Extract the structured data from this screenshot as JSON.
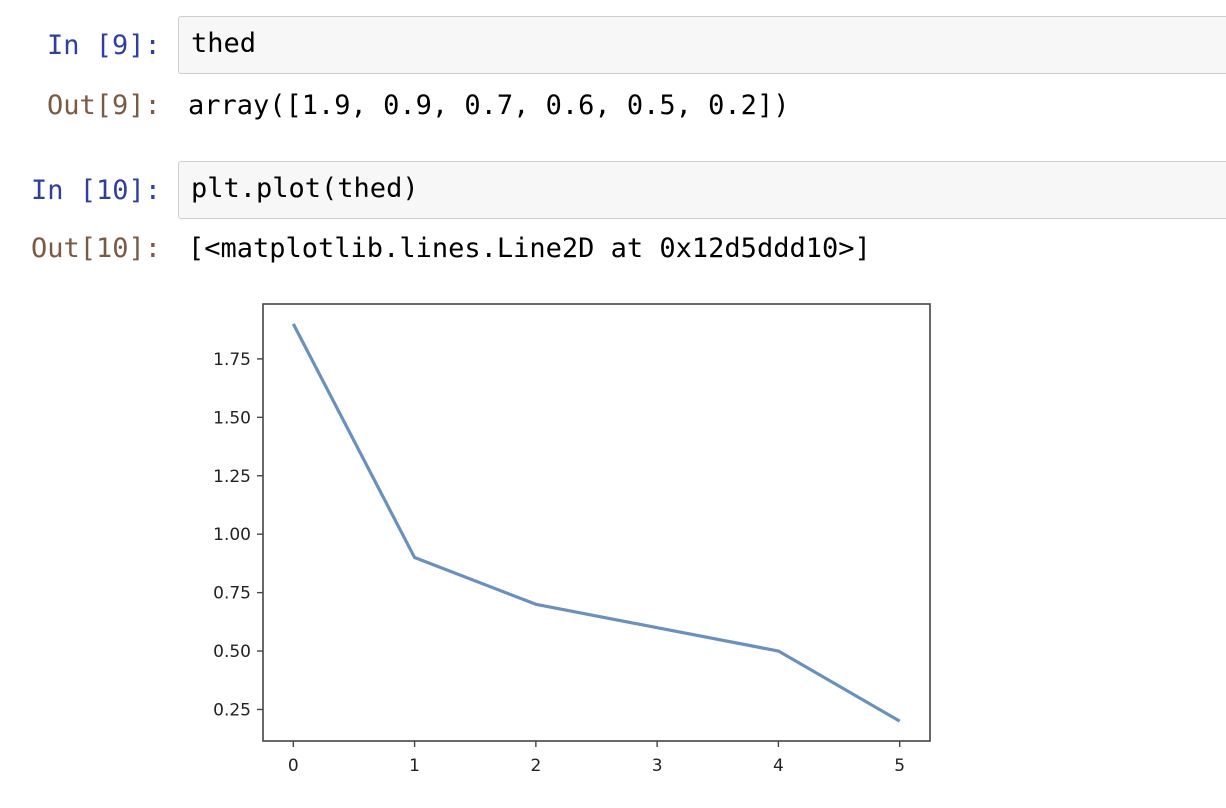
{
  "cells": [
    {
      "in_prompt": "In [9]:",
      "code": "thed",
      "out_prompt": "Out[9]:",
      "output": "array([1.9, 0.9, 0.7, 0.6, 0.5, 0.2])"
    },
    {
      "in_prompt": "In [10]:",
      "code": "plt.plot(thed)",
      "out_prompt": "Out[10]:",
      "output": "[<matplotlib.lines.Line2D at 0x12d5ddd10>]"
    }
  ],
  "chart_data": {
    "type": "line",
    "x": [
      0,
      1,
      2,
      3,
      4,
      5
    ],
    "series": [
      {
        "values": [
          1.9,
          0.9,
          0.7,
          0.6,
          0.5,
          0.2
        ],
        "color": "#6b90bb"
      }
    ],
    "xticks": [
      "0",
      "1",
      "2",
      "3",
      "4",
      "5"
    ],
    "yticks": [
      "0.25",
      "0.50",
      "0.75",
      "1.00",
      "1.25",
      "1.50",
      "1.75"
    ],
    "xlim": [
      -0.25,
      5.25
    ],
    "ylim": [
      0.115,
      1.985
    ],
    "grid": false
  }
}
